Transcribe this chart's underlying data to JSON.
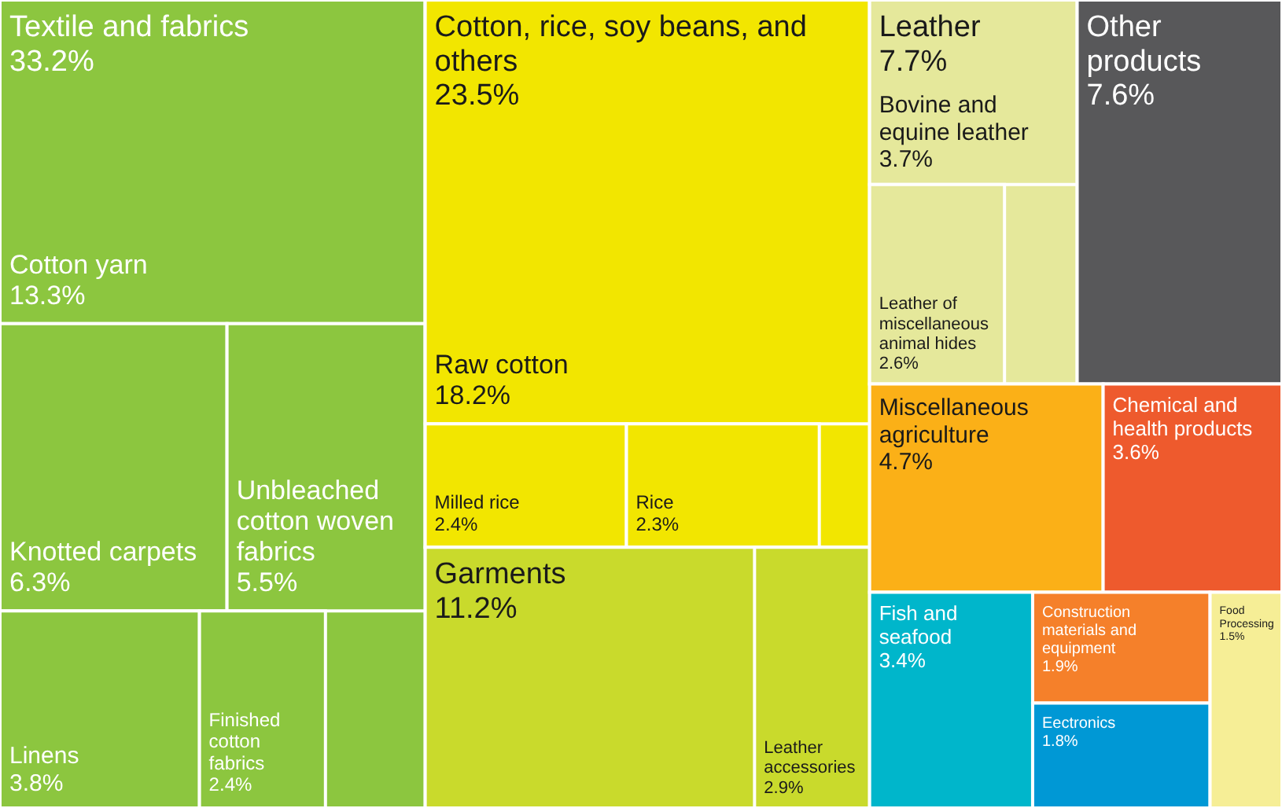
{
  "chart_data": {
    "type": "other",
    "categories": [
      "Textile and fabrics",
      "Cotton yarn",
      "Knotted carpets",
      "Unbleached cotton woven fabrics",
      "Linens",
      "Finished cotton fabrics",
      "Cotton, rice, soy beans, and others",
      "Raw cotton",
      "Milled rice",
      "Rice",
      "Garments",
      "Leather accessories",
      "Leather",
      "Bovine and equine leather",
      "Leather of miscellaneous animal hides",
      "Other products",
      "Miscellaneous agriculture",
      "Chemical and health products",
      "Fish and seafood",
      "Construction materials and equipment",
      "Eectronics",
      "Food Processing"
    ],
    "values": [
      33.2,
      13.3,
      6.3,
      5.5,
      3.8,
      2.4,
      23.5,
      18.2,
      2.4,
      2.3,
      11.2,
      2.9,
      7.7,
      3.7,
      2.6,
      7.6,
      4.7,
      3.6,
      3.4,
      1.9,
      1.8,
      1.5
    ],
    "value_labels": [
      "33.2%",
      "13.3%",
      "6.3%",
      "5.5%",
      "3.8%",
      "2.4%",
      "23.5%",
      "18.2%",
      "2.4%",
      "2.3%",
      "11.2%",
      "2.9%",
      "7.7%",
      "3.7%",
      "2.6%",
      "7.6%",
      "4.7%",
      "3.6%",
      "3.4%",
      "1.9%",
      "1.8%",
      "1.5%"
    ],
    "colors": [
      "#8cc63f",
      "#8cc63f",
      "#8cc63f",
      "#8cc63f",
      "#8cc63f",
      "#8cc63f",
      "#f2e600",
      "#f2e600",
      "#f2e600",
      "#f2e600",
      "#c9da2c",
      "#c9da2c",
      "#e5e89b",
      "#e5e89b",
      "#e5e89b",
      "#58585a",
      "#fbb017",
      "#ee5a2d",
      "#00b6cb",
      "#f5802a",
      "#0098d5",
      "#f6ee96"
    ]
  }
}
